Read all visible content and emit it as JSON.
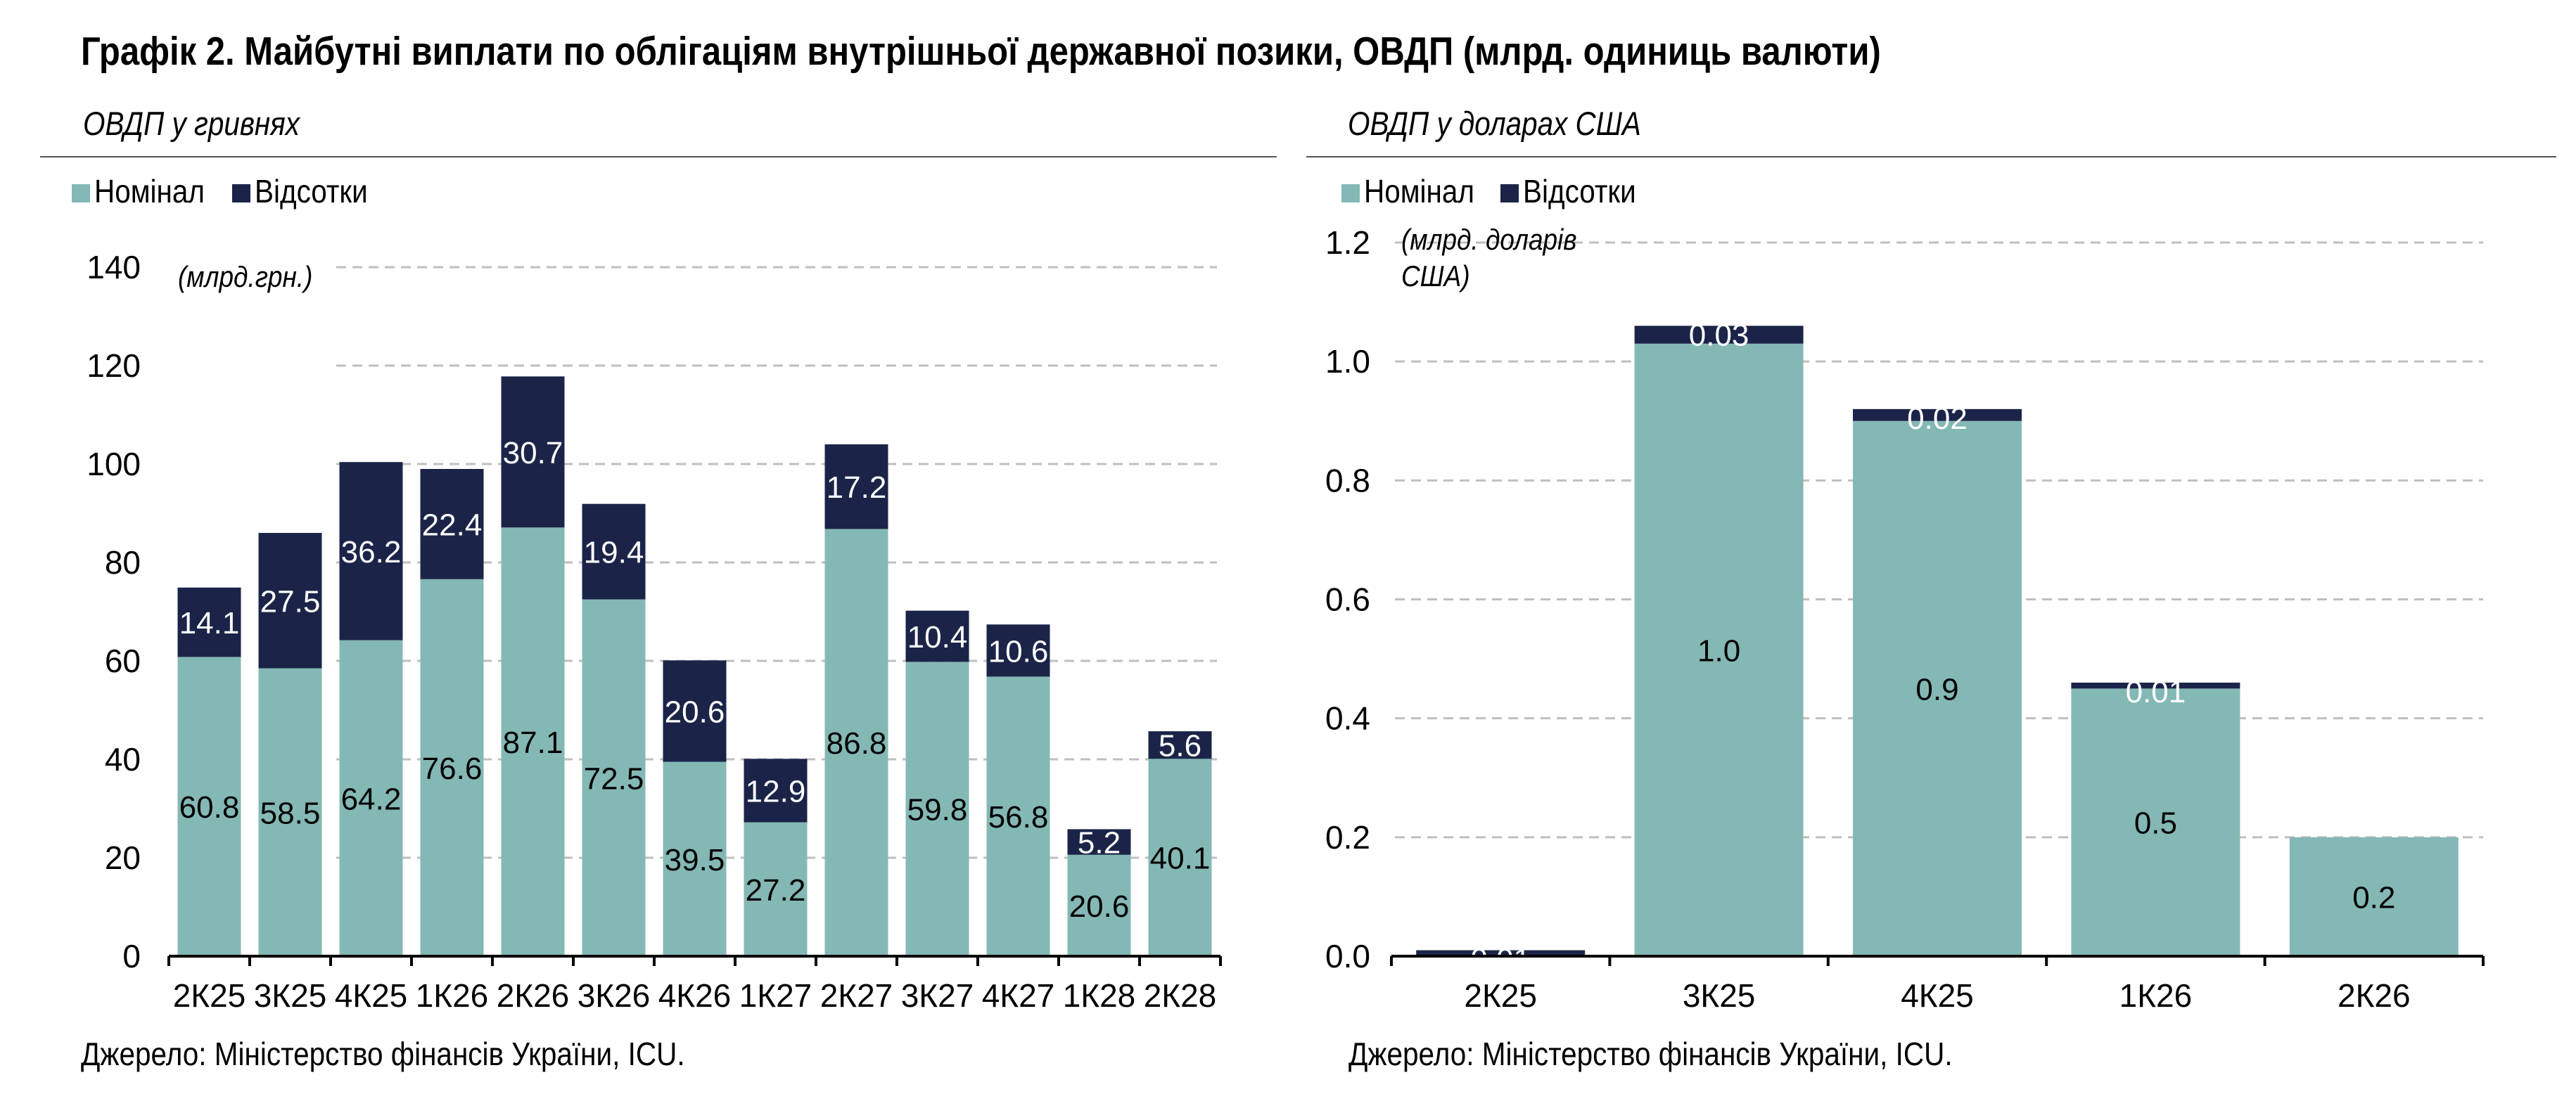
{
  "title": "Графік 2. Майбутні виплати по облігаціям внутрішньої державної позики, ОВДП (млрд. одиниць валюти)",
  "colors": {
    "nominal": "#84b8b4",
    "interest": "#1b2448",
    "grid": "#bfbfbf"
  },
  "chart_data": [
    {
      "type": "bar",
      "stacked": true,
      "subtitle": "ОВДП у гривнях",
      "unit_label": "(млрд.грн.)",
      "categories": [
        "2К25",
        "3К25",
        "4К25",
        "1К26",
        "2К26",
        "3К26",
        "4К26",
        "1К27",
        "2К27",
        "3К27",
        "4К27",
        "1К28",
        "2К28"
      ],
      "series": [
        {
          "name": "Номінал",
          "values": [
            60.8,
            58.5,
            64.2,
            76.6,
            87.1,
            72.5,
            39.5,
            27.2,
            86.8,
            59.8,
            56.8,
            20.6,
            40.1
          ],
          "labels": [
            "60.8",
            "58.5",
            "64.2",
            "76.6",
            "87.1",
            "72.5",
            "39.5",
            "27.2",
            "86.8",
            "59.8",
            "56.8",
            "20.6",
            "40.1"
          ]
        },
        {
          "name": "Відсотки",
          "values": [
            14.1,
            27.5,
            36.2,
            22.4,
            30.7,
            19.4,
            20.6,
            12.9,
            17.2,
            10.4,
            10.6,
            5.2,
            5.6
          ],
          "labels": [
            "14.1",
            "27.5",
            "36.2",
            "22.4",
            "30.7",
            "19.4",
            "20.6",
            "12.9",
            "17.2",
            "10.4",
            "10.6",
            "5.2",
            "5.6"
          ]
        }
      ],
      "yticks": [
        "0",
        "20",
        "40",
        "60",
        "80",
        "100",
        "120",
        "140"
      ],
      "ylim": [
        0,
        140
      ],
      "grid": true,
      "legend": "top-left",
      "source": "Джерело: Міністерство фінансів України, ICU."
    },
    {
      "type": "bar",
      "stacked": true,
      "subtitle": "ОВДП у доларах США",
      "unit_label": [
        "(млрд. доларів",
        "США)"
      ],
      "categories": [
        "2К25",
        "3К25",
        "4К25",
        "1К26",
        "2К26"
      ],
      "series": [
        {
          "name": "Номінал",
          "values": [
            0.0,
            1.03,
            0.9,
            0.45,
            0.2
          ],
          "labels": [
            "",
            "1.0",
            "0.9",
            "0.5",
            "0.2"
          ]
        },
        {
          "name": "Відсотки",
          "values": [
            0.01,
            0.03,
            0.02,
            0.01,
            0.0
          ],
          "labels": [
            "0.01",
            "0.03",
            "0.02",
            "0.01",
            ""
          ]
        }
      ],
      "yticks": [
        "0.0",
        "0.2",
        "0.4",
        "0.6",
        "0.8",
        "1.0",
        "1.2"
      ],
      "ylim": [
        0,
        1.2
      ],
      "grid": true,
      "legend": "top-left",
      "source": "Джерело: Міністерство фінансів України, ICU."
    }
  ]
}
